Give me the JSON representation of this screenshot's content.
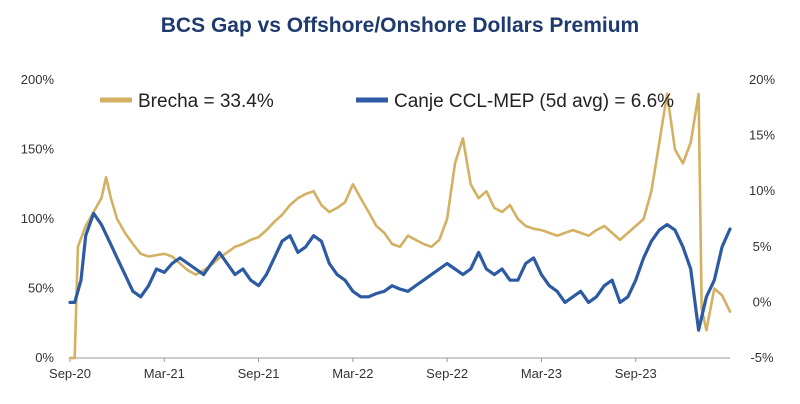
{
  "chart_data": {
    "type": "line",
    "title": "BCS Gap vs Offshore/Onshore Dollars Premium",
    "x_ticks": [
      "Sep-20",
      "Mar-21",
      "Sep-21",
      "Mar-22",
      "Sep-22",
      "Mar-23",
      "Sep-23"
    ],
    "left_axis": {
      "ticks": [
        "0%",
        "50%",
        "100%",
        "150%",
        "200%"
      ],
      "range": [
        0,
        200
      ]
    },
    "right_axis": {
      "ticks": [
        "-5%",
        "0%",
        "5%",
        "10%",
        "15%",
        "20%"
      ],
      "range": [
        -5,
        20
      ]
    },
    "x_range_months": [
      0,
      42
    ],
    "series": [
      {
        "name": "Brecha = 33.4%",
        "axis": "left",
        "color": "#d4b062",
        "points": [
          [
            0,
            0
          ],
          [
            0.3,
            0
          ],
          [
            0.5,
            80
          ],
          [
            1,
            95
          ],
          [
            1.5,
            105
          ],
          [
            2,
            115
          ],
          [
            2.3,
            130
          ],
          [
            2.6,
            115
          ],
          [
            3,
            100
          ],
          [
            3.5,
            90
          ],
          [
            4,
            82
          ],
          [
            4.5,
            75
          ],
          [
            5,
            73
          ],
          [
            5.5,
            74
          ],
          [
            6,
            75
          ],
          [
            6.5,
            73
          ],
          [
            7,
            68
          ],
          [
            7.5,
            63
          ],
          [
            8,
            60
          ],
          [
            8.5,
            63
          ],
          [
            9,
            67
          ],
          [
            9.5,
            72
          ],
          [
            10,
            76
          ],
          [
            10.5,
            80
          ],
          [
            11,
            82
          ],
          [
            11.5,
            85
          ],
          [
            12,
            87
          ],
          [
            12.5,
            92
          ],
          [
            13,
            98
          ],
          [
            13.5,
            103
          ],
          [
            14,
            110
          ],
          [
            14.5,
            115
          ],
          [
            15,
            118
          ],
          [
            15.5,
            120
          ],
          [
            16,
            110
          ],
          [
            16.5,
            105
          ],
          [
            17,
            108
          ],
          [
            17.5,
            112
          ],
          [
            18,
            125
          ],
          [
            18.5,
            115
          ],
          [
            19,
            105
          ],
          [
            19.5,
            95
          ],
          [
            20,
            90
          ],
          [
            20.5,
            82
          ],
          [
            21,
            80
          ],
          [
            21.5,
            88
          ],
          [
            22,
            85
          ],
          [
            22.5,
            82
          ],
          [
            23,
            80
          ],
          [
            23.5,
            85
          ],
          [
            24,
            100
          ],
          [
            24.5,
            140
          ],
          [
            25,
            158
          ],
          [
            25.5,
            125
          ],
          [
            26,
            115
          ],
          [
            26.5,
            120
          ],
          [
            27,
            108
          ],
          [
            27.5,
            105
          ],
          [
            28,
            110
          ],
          [
            28.5,
            100
          ],
          [
            29,
            95
          ],
          [
            29.5,
            93
          ],
          [
            30,
            92
          ],
          [
            30.5,
            90
          ],
          [
            31,
            88
          ],
          [
            31.5,
            90
          ],
          [
            32,
            92
          ],
          [
            32.5,
            90
          ],
          [
            33,
            88
          ],
          [
            33.5,
            92
          ],
          [
            34,
            95
          ],
          [
            34.5,
            90
          ],
          [
            35,
            85
          ],
          [
            35.5,
            90
          ],
          [
            36,
            95
          ],
          [
            36.5,
            100
          ],
          [
            37,
            120
          ],
          [
            37.5,
            155
          ],
          [
            38,
            190
          ],
          [
            38.5,
            150
          ],
          [
            39,
            140
          ],
          [
            39.5,
            155
          ],
          [
            40,
            190
          ],
          [
            40.2,
            35
          ],
          [
            40.5,
            20
          ],
          [
            41,
            50
          ],
          [
            41.5,
            45
          ],
          [
            42,
            33.4
          ]
        ]
      },
      {
        "name": "Canje CCL-MEP (5d avg) = 6.6%",
        "axis": "right",
        "color": "#2c5ba3",
        "points": [
          [
            0,
            0
          ],
          [
            0.3,
            0
          ],
          [
            0.7,
            2
          ],
          [
            1,
            6
          ],
          [
            1.5,
            8
          ],
          [
            2,
            7
          ],
          [
            2.5,
            5.5
          ],
          [
            3,
            4
          ],
          [
            3.5,
            2.5
          ],
          [
            4,
            1
          ],
          [
            4.5,
            0.5
          ],
          [
            5,
            1.5
          ],
          [
            5.5,
            3
          ],
          [
            6,
            2.7
          ],
          [
            6.5,
            3.5
          ],
          [
            7,
            4
          ],
          [
            7.5,
            3.5
          ],
          [
            8,
            3
          ],
          [
            8.5,
            2.5
          ],
          [
            9,
            3.5
          ],
          [
            9.5,
            4.5
          ],
          [
            10,
            3.5
          ],
          [
            10.5,
            2.5
          ],
          [
            11,
            3
          ],
          [
            11.5,
            2
          ],
          [
            12,
            1.5
          ],
          [
            12.5,
            2.5
          ],
          [
            13,
            4
          ],
          [
            13.5,
            5.5
          ],
          [
            14,
            6
          ],
          [
            14.5,
            4.5
          ],
          [
            15,
            5
          ],
          [
            15.5,
            6
          ],
          [
            16,
            5.5
          ],
          [
            16.5,
            3.5
          ],
          [
            17,
            2.5
          ],
          [
            17.5,
            2
          ],
          [
            18,
            1
          ],
          [
            18.5,
            0.5
          ],
          [
            19,
            0.5
          ],
          [
            19.5,
            0.8
          ],
          [
            20,
            1
          ],
          [
            20.5,
            1.5
          ],
          [
            21,
            1.2
          ],
          [
            21.5,
            1
          ],
          [
            22,
            1.5
          ],
          [
            22.5,
            2
          ],
          [
            23,
            2.5
          ],
          [
            23.5,
            3
          ],
          [
            24,
            3.5
          ],
          [
            24.5,
            3
          ],
          [
            25,
            2.5
          ],
          [
            25.5,
            3
          ],
          [
            26,
            4.5
          ],
          [
            26.5,
            3
          ],
          [
            27,
            2.5
          ],
          [
            27.5,
            3
          ],
          [
            28,
            2
          ],
          [
            28.5,
            2
          ],
          [
            29,
            3.5
          ],
          [
            29.5,
            4
          ],
          [
            30,
            2.5
          ],
          [
            30.5,
            1.5
          ],
          [
            31,
            1
          ],
          [
            31.5,
            0
          ],
          [
            32,
            0.5
          ],
          [
            32.5,
            1
          ],
          [
            33,
            0
          ],
          [
            33.5,
            0.5
          ],
          [
            34,
            1.5
          ],
          [
            34.5,
            2
          ],
          [
            35,
            0
          ],
          [
            35.5,
            0.5
          ],
          [
            36,
            2
          ],
          [
            36.5,
            4
          ],
          [
            37,
            5.5
          ],
          [
            37.5,
            6.5
          ],
          [
            38,
            7
          ],
          [
            38.5,
            6.5
          ],
          [
            39,
            5
          ],
          [
            39.5,
            3
          ],
          [
            40,
            -2.5
          ],
          [
            40.5,
            0.5
          ],
          [
            41,
            2
          ],
          [
            41.5,
            5
          ],
          [
            42,
            6.6
          ]
        ]
      }
    ]
  }
}
